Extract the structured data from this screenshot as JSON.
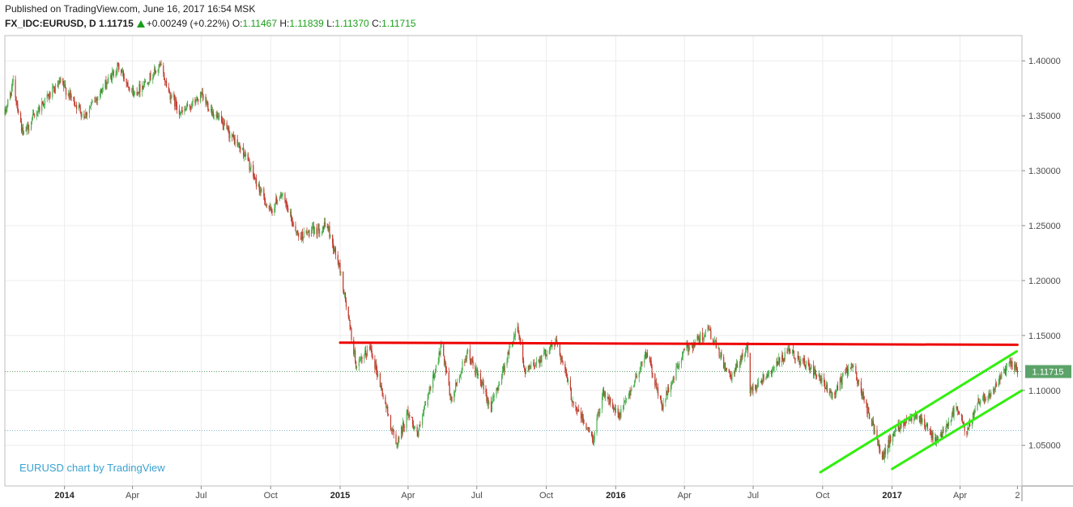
{
  "header": {
    "published": "Published on TradingView.com, June 16, 2017 16:54 MSK",
    "symbol": "FX_IDC:EURUSD, D",
    "last": "1.11715",
    "change": "+0.00249 (+0.22%)",
    "open_label": "O:",
    "open": "1.11467",
    "high_label": "H:",
    "high": "1.11839",
    "low_label": "L:",
    "low": "1.11370",
    "close_label": "C:",
    "close": "1.11715"
  },
  "watermark": "EURUSD chart by TradingView",
  "chart_data": {
    "type": "candlestick",
    "symbol": "EURUSD",
    "timeframe": "D",
    "x_labels": [
      "2014",
      "Apr",
      "Jul",
      "Oct",
      "2015",
      "Apr",
      "Jul",
      "Oct",
      "2016",
      "Apr",
      "Jul",
      "Oct",
      "2017",
      "Apr",
      "2"
    ],
    "x_label_bold": [
      true,
      false,
      false,
      false,
      true,
      false,
      false,
      false,
      true,
      false,
      false,
      false,
      true,
      false,
      false
    ],
    "x_tick_dates": [
      "2014-01-01",
      "2014-04-01",
      "2014-07-01",
      "2014-10-01",
      "2015-01-01",
      "2015-04-01",
      "2015-07-01",
      "2015-10-01",
      "2016-01-01",
      "2016-04-01",
      "2016-07-01",
      "2016-10-01",
      "2017-01-01",
      "2017-04-01",
      "2017-06-16"
    ],
    "y_labels": [
      "1.40000",
      "1.35000",
      "1.30000",
      "1.25000",
      "1.20000",
      "1.15000",
      "1.10000",
      "1.05000"
    ],
    "y_values": [
      1.4,
      1.35,
      1.3,
      1.25,
      1.2,
      1.15,
      1.1,
      1.05
    ],
    "y_range": [
      1.013,
      1.423
    ],
    "x_range": [
      "2013-10-14",
      "2017-06-22"
    ],
    "grid": true,
    "last_price": 1.11715,
    "last_price_label": "1.11715",
    "support_level": 1.0634,
    "up_color": "#4caf50",
    "down_color": "#c0392b",
    "price_path": [
      [
        "2013-10-14",
        1.352
      ],
      [
        "2013-10-25",
        1.38
      ],
      [
        "2013-11-07",
        1.332
      ],
      [
        "2013-12-01",
        1.36
      ],
      [
        "2013-12-27",
        1.38
      ],
      [
        "2014-01-27",
        1.35
      ],
      [
        "2014-03-13",
        1.395
      ],
      [
        "2014-04-03",
        1.37
      ],
      [
        "2014-05-08",
        1.395
      ],
      [
        "2014-05-20",
        1.37
      ],
      [
        "2014-06-05",
        1.352
      ],
      [
        "2014-07-01",
        1.368
      ],
      [
        "2014-07-31",
        1.34
      ],
      [
        "2014-08-28",
        1.315
      ],
      [
        "2014-09-10",
        1.292
      ],
      [
        "2014-10-01",
        1.262
      ],
      [
        "2014-10-14",
        1.28
      ],
      [
        "2014-11-07",
        1.24
      ],
      [
        "2014-12-15",
        1.25
      ],
      [
        "2015-01-01",
        1.21
      ],
      [
        "2015-01-23",
        1.12
      ],
      [
        "2015-02-10",
        1.14
      ],
      [
        "2015-03-16",
        1.05
      ],
      [
        "2015-04-01",
        1.08
      ],
      [
        "2015-04-14",
        1.06
      ],
      [
        "2015-05-15",
        1.14
      ],
      [
        "2015-05-28",
        1.09
      ],
      [
        "2015-06-18",
        1.135
      ],
      [
        "2015-07-20",
        1.085
      ],
      [
        "2015-08-24",
        1.16
      ],
      [
        "2015-09-03",
        1.115
      ],
      [
        "2015-10-15",
        1.145
      ],
      [
        "2015-11-05",
        1.09
      ],
      [
        "2015-12-02",
        1.055
      ],
      [
        "2015-12-15",
        1.1
      ],
      [
        "2016-01-05",
        1.075
      ],
      [
        "2016-02-11",
        1.135
      ],
      [
        "2016-03-02",
        1.085
      ],
      [
        "2016-03-31",
        1.135
      ],
      [
        "2016-05-03",
        1.155
      ],
      [
        "2016-06-01",
        1.11
      ],
      [
        "2016-06-23",
        1.14
      ],
      [
        "2016-06-27",
        1.1
      ],
      [
        "2016-08-18",
        1.135
      ],
      [
        "2016-09-15",
        1.12
      ],
      [
        "2016-10-14",
        1.095
      ],
      [
        "2016-11-08",
        1.125
      ],
      [
        "2016-12-20",
        1.04
      ],
      [
        "2017-01-05",
        1.065
      ],
      [
        "2017-02-02",
        1.08
      ],
      [
        "2017-03-01",
        1.052
      ],
      [
        "2017-03-27",
        1.085
      ],
      [
        "2017-04-10",
        1.06
      ],
      [
        "2017-04-24",
        1.09
      ],
      [
        "2017-05-15",
        1.1
      ],
      [
        "2017-06-06",
        1.125
      ],
      [
        "2017-06-16",
        1.1171
      ]
    ],
    "annotations": [
      {
        "type": "horizontal-line",
        "color": "#ee0000",
        "points": [
          [
            "2015-01-01",
            1.1435
          ],
          [
            "2017-06-16",
            1.1415
          ]
        ]
      },
      {
        "type": "trend-line",
        "color": "#33ee11",
        "points": [
          [
            "2016-09-28",
            1.0255
          ],
          [
            "2017-06-15",
            1.1355
          ]
        ]
      },
      {
        "type": "trend-line",
        "color": "#33ee11",
        "points": [
          [
            "2017-01-01",
            1.0285
          ],
          [
            "2017-06-22",
            1.1
          ]
        ]
      }
    ]
  }
}
